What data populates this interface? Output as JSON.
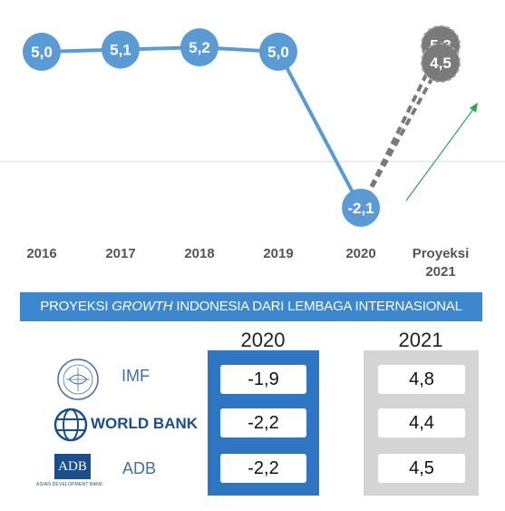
{
  "chart_data": {
    "type": "line",
    "categories": [
      "2016",
      "2017",
      "2018",
      "2019",
      "2020",
      "Proyeksi 2021"
    ],
    "series": [
      {
        "values": [
          5.0,
          5.1,
          5.2,
          5.0,
          -2.1,
          null
        ]
      },
      {
        "values": [
          null,
          null,
          null,
          null,
          -2.1,
          5.3
        ]
      },
      {
        "values": [
          null,
          null,
          null,
          null,
          -2.1,
          4.5
        ]
      }
    ],
    "labels": [
      "5,0",
      "5,1",
      "5,2",
      "5,0",
      "-2,1"
    ],
    "projection_labels": [
      "5,3",
      "4,5"
    ],
    "projection_label_top": "Proyeksi",
    "projection_label_bottom": "2021",
    "ylim": [
      -3,
      6
    ],
    "grid": false,
    "colors": {
      "actual": "#5b9bd5",
      "projection": "#7a7a7a",
      "arrow": "#2da84f",
      "baseline": "#d9d9d9"
    }
  },
  "table": {
    "title_pre": "PROYEKSI ",
    "title_em": "GROWTH",
    "title_post": " INDONESIA DARI LEMBAGA INTERNASIONAL",
    "col_2020": "2020",
    "col_2021": "2021",
    "rows": [
      {
        "name": "IMF",
        "v2020": "-1,9",
        "v2021": "4,8"
      },
      {
        "name": "WORLD BANK",
        "v2020": "-2,2",
        "v2021": "4,4"
      },
      {
        "name": "ADB",
        "v2020": "-2,2",
        "v2021": "4,5"
      }
    ],
    "adb_logo_text": "ADB",
    "adb_logo_caption": "ASIAN DEVELOPMENT BANK"
  }
}
